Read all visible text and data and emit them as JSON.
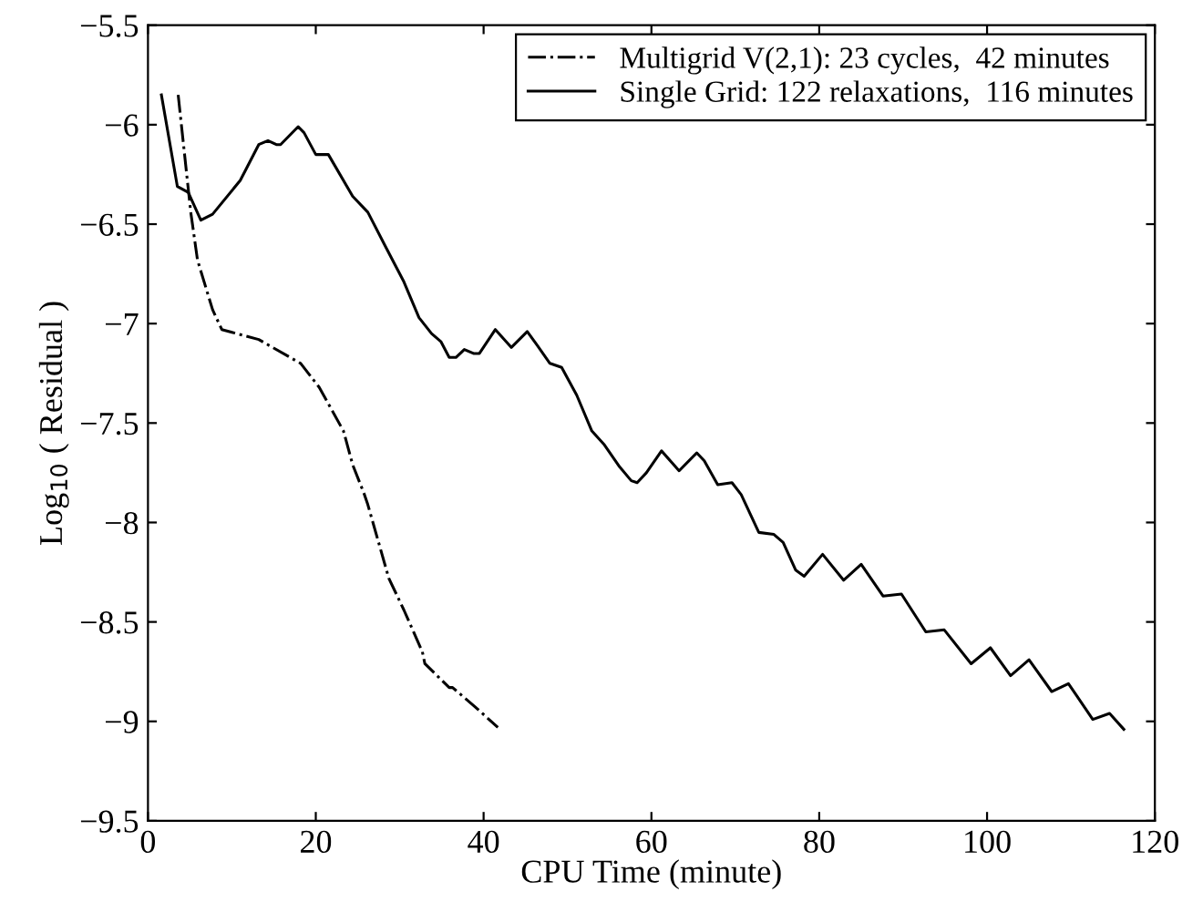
{
  "chart_data": {
    "type": "line",
    "xlabel": "CPU Time (minute)",
    "ylabel": "Log$_{10}$ ( Residual )",
    "xlim": [
      0,
      120
    ],
    "xticks": [
      0,
      20,
      40,
      60,
      80,
      100,
      120
    ],
    "ylim": [
      -9.5,
      -5.5
    ],
    "yticks": [
      {
        "value": -9.5,
        "label": "−9.5"
      },
      {
        "value": -9,
        "label": "−9"
      },
      {
        "value": -8.5,
        "label": "−8.5"
      },
      {
        "value": -8,
        "label": "−8"
      },
      {
        "value": -7.5,
        "label": "−7.5"
      },
      {
        "value": -7,
        "label": "−7"
      },
      {
        "value": -6.5,
        "label": "−6.5"
      },
      {
        "value": -6,
        "label": "−6"
      },
      {
        "value": -5.5,
        "label": "−5.5"
      }
    ],
    "grid": false,
    "legend": "top right",
    "marker": "none",
    "series": [
      {
        "name": "Multigrid V(2,1): 23 cycles,  42 minutes",
        "color": "#000000",
        "line_style": "dashdot",
        "x": [
          3.6,
          5.1,
          5.9,
          7.7,
          8.8,
          13.2,
          18.2,
          20.4,
          23.3,
          24.4,
          25.8,
          26.2,
          28.7,
          30.5,
          32.7,
          33.0,
          35.9,
          36.3,
          38.8,
          41.7
        ],
        "values": [
          -5.85,
          -6.44,
          -6.68,
          -6.93,
          -7.03,
          -7.08,
          -7.2,
          -7.32,
          -7.54,
          -7.71,
          -7.86,
          -7.91,
          -8.28,
          -8.44,
          -8.65,
          -8.71,
          -8.83,
          -8.83,
          -8.92,
          -9.03
        ]
      },
      {
        "name": "Single Grid: 122 relaxations,  116 minutes",
        "color": "#000000",
        "line_style": "solid",
        "x": [
          1.6,
          3.5,
          4.8,
          6.3,
          7.7,
          11,
          13.2,
          14.3,
          15.3,
          15.8,
          17.9,
          18.6,
          20.0,
          21.5,
          24.4,
          26.2,
          28.4,
          30.5,
          32.3,
          33.8,
          34.9,
          35.9,
          36.7,
          37.7,
          38.8,
          39.5,
          41.4,
          43.3,
          45.2,
          46.4,
          47.9,
          49.3,
          51.1,
          52.9,
          54.4,
          56.2,
          57.6,
          58.3,
          59.4,
          61.2,
          63.3,
          65.4,
          66.3,
          67.9,
          69.6,
          70.7,
          72.8,
          74.6,
          75.7,
          77.2,
          78.2,
          80.4,
          82.9,
          85.0,
          87.6,
          89.8,
          92.7,
          94.9,
          98.1,
          100.4,
          102.8,
          105.0,
          107.7,
          109.7,
          112.6,
          114.6,
          116.3
        ],
        "values": [
          -5.85,
          -6.31,
          -6.34,
          -6.48,
          -6.45,
          -6.28,
          -6.1,
          -6.08,
          -6.1,
          -6.1,
          -6.01,
          -6.04,
          -6.15,
          -6.15,
          -6.36,
          -6.44,
          -6.62,
          -6.79,
          -6.97,
          -7.05,
          -7.09,
          -7.17,
          -7.17,
          -7.13,
          -7.15,
          -7.15,
          -7.03,
          -7.12,
          -7.04,
          -7.11,
          -7.2,
          -7.22,
          -7.36,
          -7.54,
          -7.61,
          -7.72,
          -7.79,
          -7.8,
          -7.75,
          -7.64,
          -7.74,
          -7.65,
          -7.69,
          -7.81,
          -7.8,
          -7.86,
          -8.05,
          -8.06,
          -8.1,
          -8.24,
          -8.27,
          -8.16,
          -8.29,
          -8.21,
          -8.37,
          -8.36,
          -8.55,
          -8.54,
          -8.71,
          -8.63,
          -8.77,
          -8.69,
          -8.85,
          -8.81,
          -8.99,
          -8.96,
          -9.04
        ]
      }
    ]
  }
}
